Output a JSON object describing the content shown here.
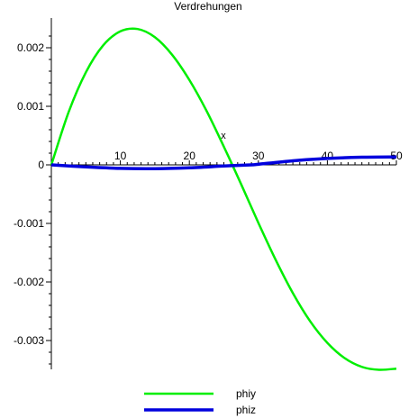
{
  "chart_data": {
    "type": "line",
    "title": "Verdrehungen",
    "xlabel": "x",
    "ylabel": "",
    "xlim": [
      0,
      50
    ],
    "ylim": [
      -0.0034,
      0.0023
    ],
    "x_ticks": [
      10,
      20,
      30,
      40,
      50
    ],
    "y_ticks": [
      0.002,
      0.001,
      0,
      -0.001,
      -0.002,
      -0.003
    ],
    "y_tick_labels": [
      "0.002",
      "0.001",
      "0",
      "-0.001",
      "-0.002",
      "-0.003"
    ],
    "grid": false,
    "legend_position": "bottom",
    "series": [
      {
        "name": "phiy",
        "color": "#00ee00",
        "x": [
          0,
          2.5,
          5,
          7.5,
          10,
          12.5,
          15,
          17.5,
          20,
          22.5,
          25,
          27.5,
          30,
          32.5,
          35,
          37.5,
          40,
          42.5,
          45,
          47.5,
          50
        ],
        "y": [
          0,
          0.0009,
          0.00158,
          0.00204,
          0.00228,
          0.00232,
          0.00218,
          0.00188,
          0.00145,
          0.00092,
          0.00031,
          -0.00033,
          -0.00099,
          -0.00162,
          -0.00219,
          -0.00267,
          -0.00304,
          -0.0033,
          -0.00345,
          -0.0035,
          -0.00348
        ]
      },
      {
        "name": "phiz",
        "color": "#0000dd",
        "x": [
          0,
          5,
          10,
          15,
          20,
          25,
          29,
          30,
          35,
          40,
          45,
          50
        ],
        "y": [
          0,
          -3.5e-05,
          -6e-05,
          -6.5e-05,
          -5e-05,
          -2e-05,
          0,
          1e-05,
          7e-05,
          0.00011,
          0.00013,
          0.000135
        ]
      }
    ]
  }
}
